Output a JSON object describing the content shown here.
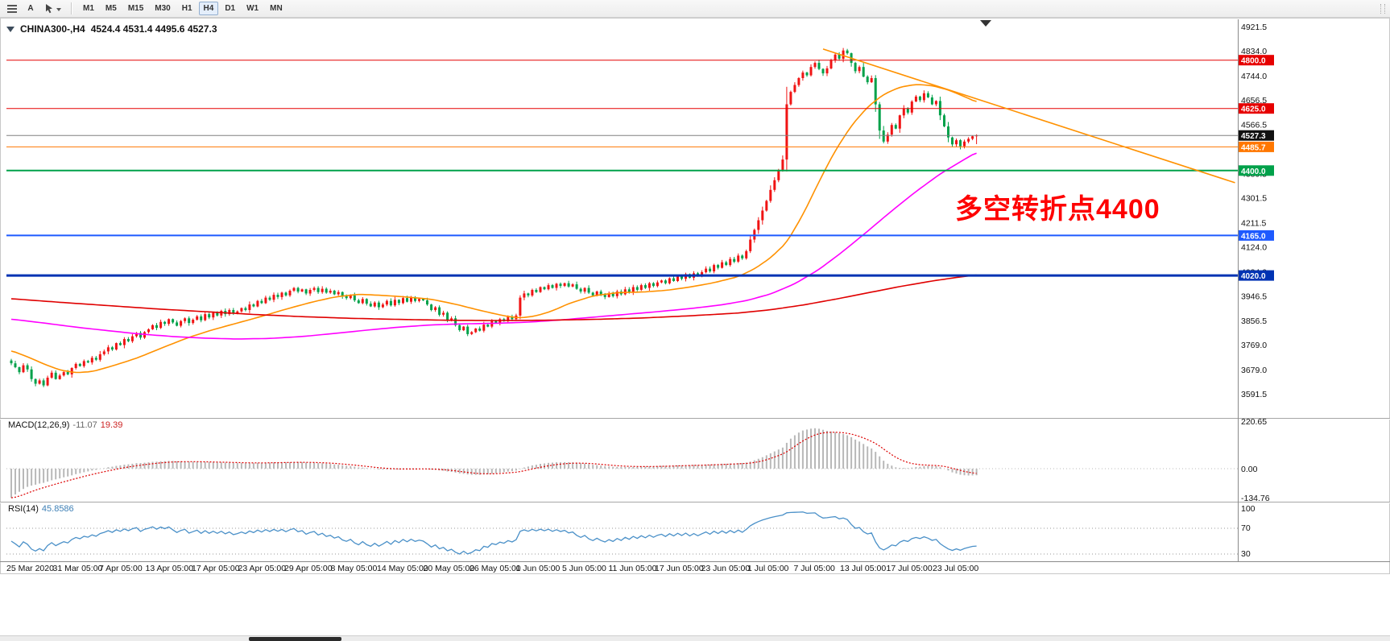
{
  "toolbar": {
    "label_tool": "A",
    "timeframes": [
      {
        "label": "M1",
        "active": false
      },
      {
        "label": "M5",
        "active": false
      },
      {
        "label": "M15",
        "active": false
      },
      {
        "label": "M30",
        "active": false
      },
      {
        "label": "H1",
        "active": false
      },
      {
        "label": "H4",
        "active": true
      },
      {
        "label": "D1",
        "active": false
      },
      {
        "label": "W1",
        "active": false
      },
      {
        "label": "MN",
        "active": false
      }
    ]
  },
  "chart": {
    "title": {
      "symbol_period": "CHINA300-,H4",
      "ohlc": "4524.4 4531.4 4495.6 4527.3"
    },
    "annotation": {
      "text": "多空转折点4400",
      "color": "#fe0000"
    }
  },
  "chart_data": [
    {
      "type": "candlestick",
      "symbol": "CHINA300-",
      "timeframe": "H4",
      "ohlc_current": {
        "open": 4524.4,
        "high": 4531.4,
        "low": 4495.6,
        "close": 4527.3
      },
      "ylim": [
        3510,
        4950
      ],
      "candle_up_color": "#f01414",
      "candle_down_color": "#00a14a",
      "closes": [
        3702,
        3688,
        3670,
        3695,
        3680,
        3645,
        3628,
        3640,
        3622,
        3650,
        3668,
        3645,
        3658,
        3670,
        3662,
        3685,
        3700,
        3692,
        3710,
        3705,
        3722,
        3715,
        3735,
        3745,
        3760,
        3752,
        3775,
        3768,
        3790,
        3782,
        3800,
        3812,
        3795,
        3815,
        3825,
        3840,
        3830,
        3852,
        3845,
        3862,
        3850,
        3838,
        3855,
        3865,
        3848,
        3860,
        3872,
        3858,
        3880,
        3868,
        3885,
        3875,
        3892,
        3880,
        3895,
        3882,
        3890,
        3902,
        3895,
        3915,
        3908,
        3928,
        3920,
        3940,
        3932,
        3950,
        3942,
        3958,
        3948,
        3965,
        3975,
        3962,
        3970,
        3955,
        3968,
        3975,
        3960,
        3972,
        3958,
        3965,
        3952,
        3960,
        3945,
        3938,
        3948,
        3930,
        3920,
        3935,
        3918,
        3908,
        3922,
        3905,
        3915,
        3928,
        3912,
        3932,
        3920,
        3938,
        3925,
        3940,
        3928,
        3935,
        3930,
        3915,
        3895,
        3905,
        3878,
        3885,
        3858,
        3865,
        3840,
        3822,
        3835,
        3808,
        3815,
        3828,
        3820,
        3842,
        3835,
        3855,
        3848,
        3862,
        3855,
        3870,
        3862,
        3875,
        3940,
        3955,
        3948,
        3968,
        3960,
        3978,
        3970,
        3985,
        3975,
        3990,
        3982,
        3992,
        3980,
        3988,
        3972,
        3962,
        3975,
        3958,
        3948,
        3962,
        3950,
        3942,
        3955,
        3945,
        3962,
        3952,
        3970,
        3960,
        3978,
        3968,
        3985,
        3975,
        3992,
        3982,
        3995,
        4002,
        3992,
        4010,
        4000,
        4018,
        4008,
        4025,
        4012,
        4028,
        4018,
        4032,
        4045,
        4035,
        4058,
        4048,
        4068,
        4058,
        4080,
        4070,
        4092,
        4082,
        4108,
        4150,
        4185,
        4220,
        4255,
        4290,
        4330,
        4365,
        4400,
        4440,
        4640,
        4685,
        4710,
        4735,
        4755,
        4745,
        4775,
        4790,
        4768,
        4752,
        4770,
        4800,
        4820,
        4805,
        4835,
        4825,
        4790,
        4760,
        4775,
        4740,
        4720,
        4735,
        4640,
        4545,
        4505,
        4530,
        4565,
        4552,
        4600,
        4625,
        4610,
        4650,
        4668,
        4655,
        4680,
        4665,
        4640,
        4652,
        4600,
        4560,
        4520,
        4495,
        4510,
        4488,
        4505,
        4515,
        4524.4,
        4527.3
      ],
      "y_axis_ticks": [
        "4921.5",
        "4834.0",
        "4744.0",
        "4656.5",
        "4566.5",
        "4479.0",
        "4389.5",
        "4301.5",
        "4211.5",
        "4124.0",
        "4034.0",
        "3946.5",
        "3856.5",
        "3769.0",
        "3679.0",
        "3591.5"
      ],
      "x_axis_labels": [
        "25 Mar 2020",
        "31 Mar 05:00",
        "7 Apr 05:00",
        "13 Apr 05:00",
        "17 Apr 05:00",
        "23 Apr 05:00",
        "29 Apr 05:00",
        "8 May 05:00",
        "14 May 05:00",
        "20 May 05:00",
        "26 May 05:00",
        "1 Jun 05:00",
        "5 Jun 05:00",
        "11 Jun 05:00",
        "17 Jun 05:00",
        "23 Jun 05:00",
        "1 Jul 05:00",
        "7 Jul 05:00",
        "13 Jul 05:00",
        "17 Jul 05:00",
        "23 Jul 05:00"
      ],
      "levels": [
        {
          "price": 4800.0,
          "label": "4800.0",
          "color": "#e60000",
          "width": 1
        },
        {
          "price": 4625.0,
          "label": "4625.0",
          "color": "#e60000",
          "width": 1
        },
        {
          "price": 4527.3,
          "label": "4527.3",
          "color": "#808080",
          "badge": "#111111",
          "width": 1,
          "role": "current-price"
        },
        {
          "price": 4485.7,
          "label": "4485.7",
          "color": "#ff7700",
          "width": 1
        },
        {
          "price": 4400.0,
          "label": "4400.0",
          "color": "#00a14a",
          "width": 2
        },
        {
          "price": 4165.0,
          "label": "4165.0",
          "color": "#1e5aff",
          "width": 2
        },
        {
          "price": 4020.0,
          "label": "4020.0",
          "color": "#0033b3",
          "width": 3
        }
      ],
      "ma_lines": [
        {
          "name": "ma-fast-orange",
          "color": "#ff9100",
          "points": [
            [
              0,
              3748
            ],
            [
              4,
              3726
            ],
            [
              8,
              3700
            ],
            [
              12,
              3678
            ],
            [
              16,
              3668
            ],
            [
              20,
              3672
            ],
            [
              24,
              3688
            ],
            [
              28,
              3706
            ],
            [
              32,
              3726
            ],
            [
              38,
              3762
            ],
            [
              44,
              3796
            ],
            [
              50,
              3824
            ],
            [
              56,
              3848
            ],
            [
              62,
              3872
            ],
            [
              68,
              3898
            ],
            [
              74,
              3922
            ],
            [
              80,
              3942
            ],
            [
              86,
              3952
            ],
            [
              92,
              3948
            ],
            [
              98,
              3942
            ],
            [
              104,
              3934
            ],
            [
              110,
              3916
            ],
            [
              116,
              3894
            ],
            [
              122,
              3874
            ],
            [
              126,
              3866
            ],
            [
              130,
              3874
            ],
            [
              134,
              3892
            ],
            [
              138,
              3918
            ],
            [
              144,
              3946
            ],
            [
              150,
              3958
            ],
            [
              156,
              3960
            ],
            [
              162,
              3966
            ],
            [
              168,
              3978
            ],
            [
              174,
              3994
            ],
            [
              180,
              4016
            ],
            [
              184,
              4044
            ],
            [
              188,
              4084
            ],
            [
              192,
              4140
            ],
            [
              196,
              4240
            ],
            [
              200,
              4360
            ],
            [
              204,
              4472
            ],
            [
              208,
              4562
            ],
            [
              212,
              4630
            ],
            [
              216,
              4676
            ],
            [
              220,
              4702
            ],
            [
              224,
              4712
            ],
            [
              228,
              4708
            ],
            [
              232,
              4692
            ],
            [
              236,
              4668
            ],
            [
              239,
              4648
            ]
          ]
        },
        {
          "name": "ma-mid-magenta",
          "color": "#ff00ff",
          "points": [
            [
              0,
              3862
            ],
            [
              8,
              3848
            ],
            [
              16,
              3833
            ],
            [
              24,
              3820
            ],
            [
              32,
              3808
            ],
            [
              40,
              3799
            ],
            [
              48,
              3793
            ],
            [
              56,
              3790
            ],
            [
              64,
              3792
            ],
            [
              72,
              3799
            ],
            [
              80,
              3810
            ],
            [
              88,
              3822
            ],
            [
              96,
              3833
            ],
            [
              104,
              3841
            ],
            [
              112,
              3845
            ],
            [
              120,
              3847
            ],
            [
              128,
              3851
            ],
            [
              136,
              3859
            ],
            [
              144,
              3869
            ],
            [
              152,
              3879
            ],
            [
              160,
              3889
            ],
            [
              168,
              3900
            ],
            [
              176,
              3914
            ],
            [
              182,
              3929
            ],
            [
              188,
              3953
            ],
            [
              194,
              3990
            ],
            [
              200,
              4042
            ],
            [
              206,
              4108
            ],
            [
              212,
              4180
            ],
            [
              218,
              4254
            ],
            [
              224,
              4324
            ],
            [
              230,
              4388
            ],
            [
              235,
              4432
            ],
            [
              239,
              4466
            ]
          ]
        },
        {
          "name": "ma-slow-red",
          "color": "#e00000",
          "points": [
            [
              0,
              3936
            ],
            [
              12,
              3923
            ],
            [
              24,
              3911
            ],
            [
              36,
              3899
            ],
            [
              48,
              3889
            ],
            [
              60,
              3879
            ],
            [
              72,
              3871
            ],
            [
              84,
              3865
            ],
            [
              96,
              3861
            ],
            [
              108,
              3858
            ],
            [
              120,
              3857
            ],
            [
              132,
              3858
            ],
            [
              144,
              3861
            ],
            [
              156,
              3866
            ],
            [
              168,
              3874
            ],
            [
              180,
              3884
            ],
            [
              188,
              3896
            ],
            [
              196,
              3913
            ],
            [
              204,
              3934
            ],
            [
              212,
              3957
            ],
            [
              220,
              3980
            ],
            [
              228,
              4000
            ],
            [
              234,
              4013
            ],
            [
              239,
              4022
            ]
          ]
        }
      ],
      "trendline": {
        "color": "#ff9100",
        "from": [
          201,
          4840
        ],
        "to": [
          303,
          4356
        ]
      }
    },
    {
      "type": "macd",
      "title": "MACD(12,26,9)",
      "macd_value": "-11.07",
      "signal_value": "19.39",
      "fast": 12,
      "slow": 26,
      "signal": 9,
      "y_axis_ticks": [
        "220.65",
        "0.00",
        "-134.76"
      ],
      "histogram_color": "#b8b8b8",
      "signal_color": "#dd0000",
      "source": "derived from closes"
    },
    {
      "type": "rsi",
      "title": "RSI(14)",
      "value": "45.8586",
      "period": 14,
      "y_axis_ticks": [
        "100",
        "70",
        "30"
      ],
      "levels": [
        70,
        30
      ],
      "line_color": "#4a90c8"
    }
  ]
}
